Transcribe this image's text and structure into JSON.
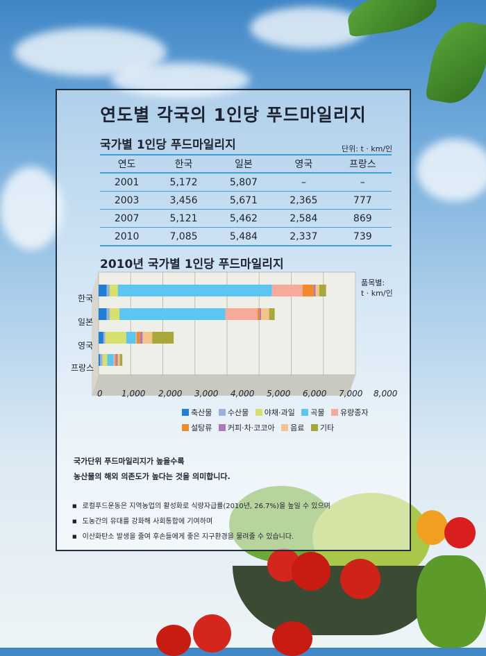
{
  "poster": {
    "title": "연도별 각국의 1인당 푸드마일리지",
    "table_title": "국가별 1인당 푸드마일리지",
    "table_unit": "단위: t · km/인",
    "chart_title": "2010년 국가별 1인당 푸드마일리지",
    "chart_unit_line1": "품목별:",
    "chart_unit_line2": "t · km/인",
    "note_line1": "국가단위 푸드마일리지가 높을수록",
    "note_line2": "농산물의 해외 의존도가 높다는 것을 의미합니다.",
    "bullets": [
      "로컬푸드운동은 지역농업의 활성화로 식량자급률(2010년, 26.7%)을 높일 수 있으며",
      "도농간의 유대를 강화해 사회통합에 기여하며",
      "이산화탄소 발생을 줄여 후손들에게 좋은 지구환경을 물려줄 수 있습니다."
    ]
  },
  "table": {
    "headers": [
      "연도",
      "한국",
      "일본",
      "영국",
      "프랑스"
    ],
    "rows": [
      [
        "2001",
        "5,172",
        "5,807",
        "–",
        "–"
      ],
      [
        "2003",
        "3,456",
        "5,671",
        "2,365",
        "777"
      ],
      [
        "2007",
        "5,121",
        "5,462",
        "2,584",
        "869"
      ],
      [
        "2010",
        "7,085",
        "5,484",
        "2,337",
        "739"
      ]
    ]
  },
  "chart_data": {
    "type": "bar",
    "orientation": "horizontal",
    "stacked": true,
    "title": "2010년 국가별 1인당 푸드마일리지",
    "categories": [
      "한국",
      "일본",
      "영국",
      "프랑스"
    ],
    "xlim": [
      0,
      8000
    ],
    "ticks": [
      "0",
      "1,000",
      "2,000",
      "3,000",
      "4,000",
      "5,000",
      "6,000",
      "7,000",
      "8,000"
    ],
    "series": [
      {
        "name": "축산물",
        "color": "#1f7fd6",
        "values": [
          250,
          250,
          150,
          50
        ]
      },
      {
        "name": "수산물",
        "color": "#9bb0d8",
        "values": [
          100,
          100,
          60,
          70
        ]
      },
      {
        "name": "야채·과일",
        "color": "#d6e06a",
        "values": [
          250,
          300,
          650,
          150
        ]
      },
      {
        "name": "곡물",
        "color": "#5cc6f2",
        "values": [
          4800,
          3300,
          300,
          200
        ]
      },
      {
        "name": "유량종자",
        "color": "#f5aa9a",
        "values": [
          950,
          1000,
          30,
          40
        ]
      },
      {
        "name": "설탕류",
        "color": "#f08a2a",
        "values": [
          350,
          60,
          100,
          40
        ]
      },
      {
        "name": "커피·차·코코아",
        "color": "#b07ab8",
        "values": [
          60,
          50,
          80,
          50
        ]
      },
      {
        "name": "음료",
        "color": "#f2c48a",
        "values": [
          110,
          250,
          300,
          60
        ]
      },
      {
        "name": "기타",
        "color": "#a8a83a",
        "values": [
          215,
          174,
          667,
          79
        ]
      }
    ],
    "grid": true,
    "legend_position": "bottom"
  },
  "icons": [
    "leaf-icon",
    "tomato-icon",
    "pepper-icon",
    "broccoli-icon",
    "basket-icon"
  ]
}
